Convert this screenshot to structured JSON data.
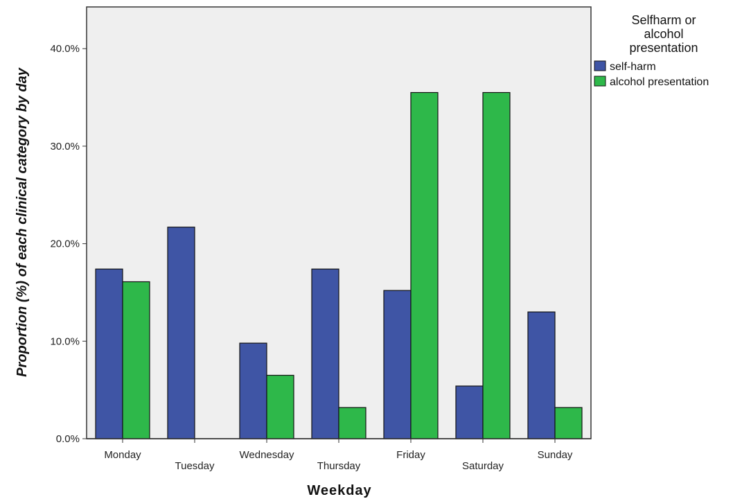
{
  "chart_data": {
    "type": "bar",
    "title": "",
    "xlabel": "Weekday",
    "ylabel": "Proportion (%) of each clinical category by day",
    "categories": [
      "Monday",
      "Tuesday",
      "Wednesday",
      "Thursday",
      "Friday",
      "Saturday",
      "Sunday"
    ],
    "ylim": [
      0,
      44
    ],
    "yticks": [
      0,
      10,
      20,
      30,
      40
    ],
    "ytick_labels": [
      "0.0%",
      "10.0%",
      "20.0%",
      "30.0%",
      "40.0%"
    ],
    "grid": false,
    "legend": {
      "title_lines": [
        "Selfharm or",
        "alcohol",
        "presentation"
      ],
      "placement": "right, outside plot, top"
    },
    "series": [
      {
        "name": "self-harm",
        "color": "#3f55a5",
        "values": [
          17.4,
          21.7,
          9.8,
          17.4,
          15.2,
          5.4,
          13.0
        ]
      },
      {
        "name": "alcohol presentation",
        "color": "#2eb84a",
        "values": [
          16.1,
          0.0,
          6.5,
          3.2,
          35.5,
          35.5,
          3.2
        ]
      }
    ],
    "plot_background": "#efefef"
  }
}
